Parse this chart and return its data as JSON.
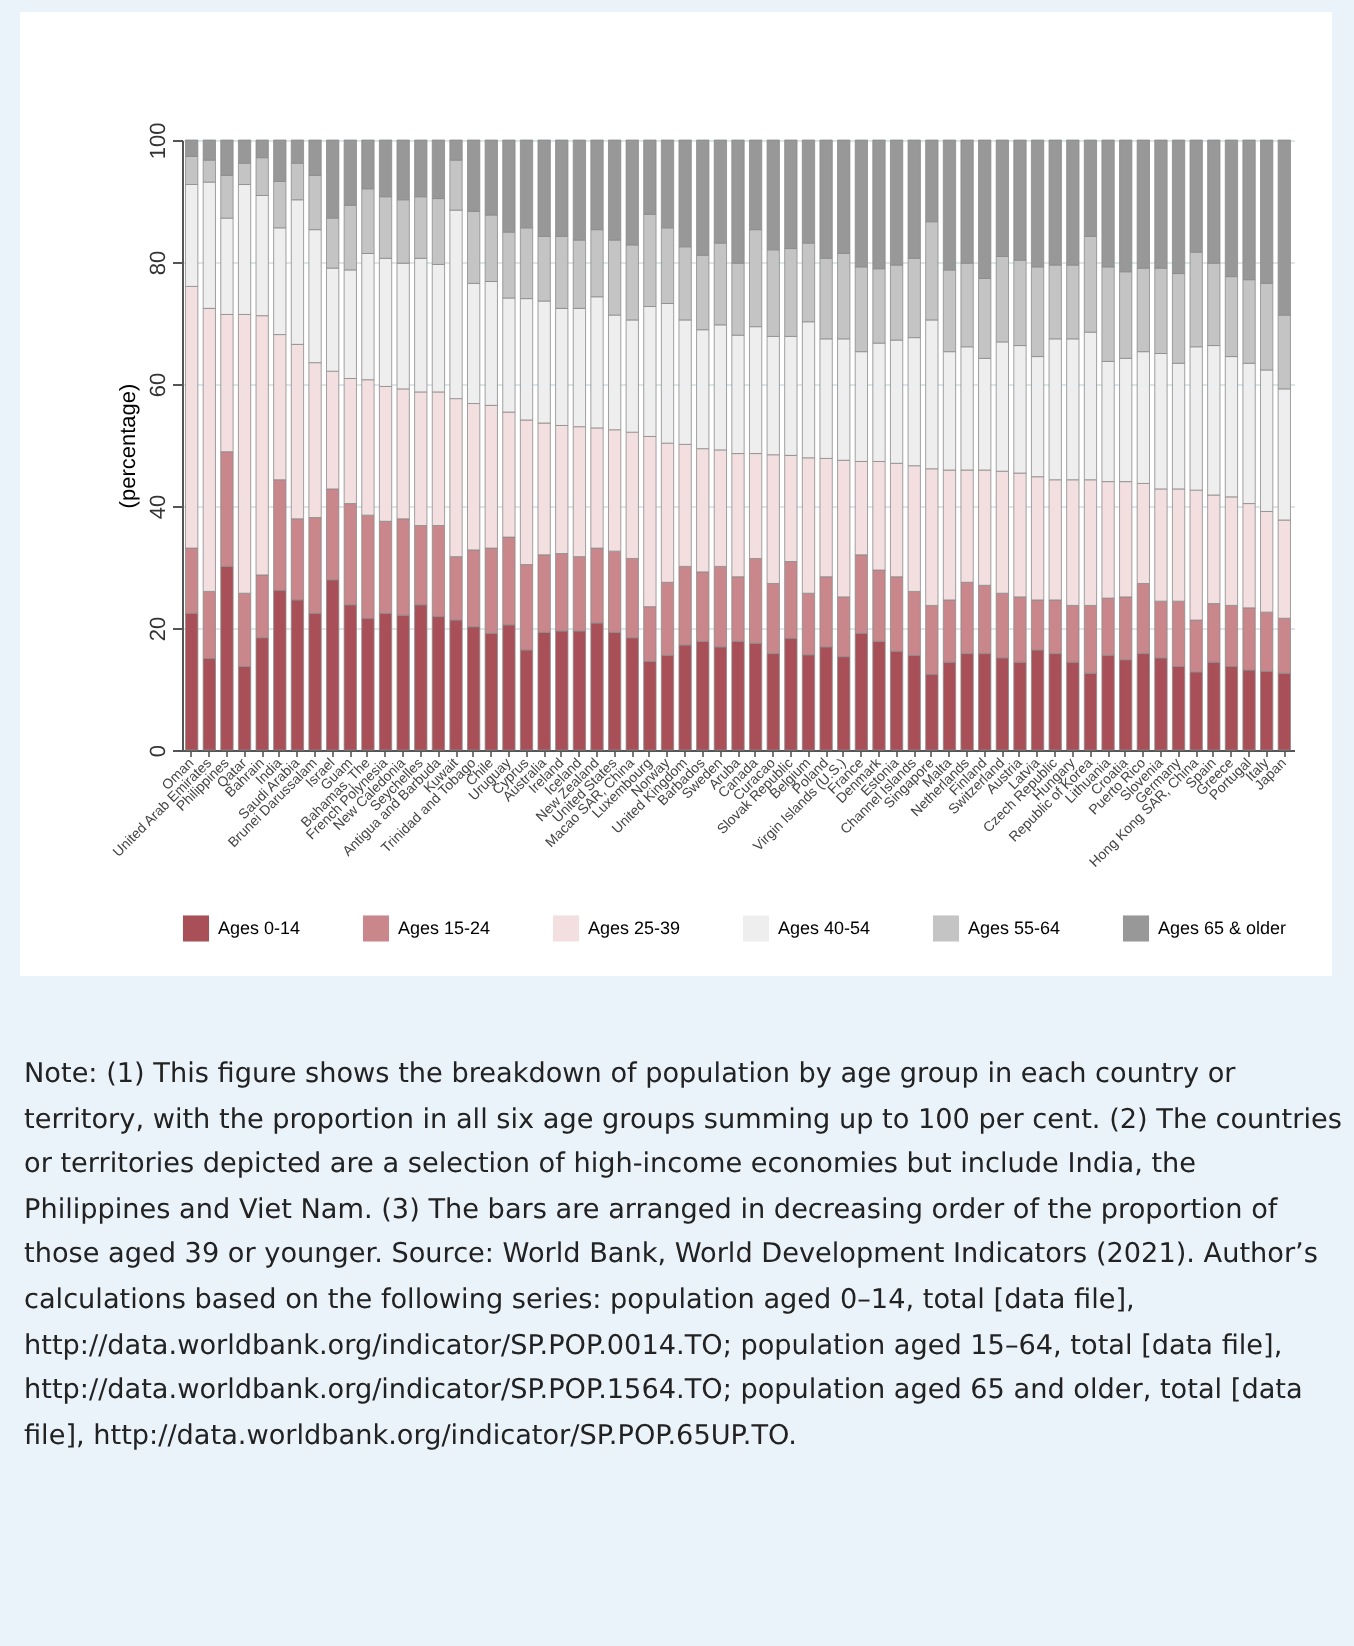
{
  "chart_data": {
    "type": "bar",
    "stacked": true,
    "ylabel": "(percentage)",
    "ylim": [
      0,
      100
    ],
    "yticks": [
      0,
      20,
      40,
      60,
      80,
      100
    ],
    "grid": "y",
    "legend": "bottom",
    "categories": [
      "Oman",
      "United Arab Emirates",
      "Philippines",
      "Qatar",
      "Bahrain",
      "India",
      "Saudi Arabia",
      "Brunei Darussalam",
      "Israel",
      "Guam",
      "Bahamas, The",
      "French Polynesia",
      "New Caledonia",
      "Seychelles",
      "Antigua and Barbuda",
      "Kuwait",
      "Trinidad and Tobago",
      "Chile",
      "Uruguay",
      "Cyprus",
      "Australia",
      "Ireland",
      "Iceland",
      "New Zealand",
      "United States",
      "Macao SAR, China",
      "Luxembourg",
      "Norway",
      "United Kingdom",
      "Barbados",
      "Sweden",
      "Aruba",
      "Canada",
      "Curacao",
      "Slovak Republic",
      "Belgium",
      "Poland",
      "Virgin Islands (U.S.)",
      "France",
      "Denmark",
      "Estonia",
      "Channel Islands",
      "Singapore",
      "Malta",
      "Netherlands",
      "Finland",
      "Switzerland",
      "Austria",
      "Latvia",
      "Czech Republic",
      "Hungary",
      "Republic of Korea",
      "Lithuania",
      "Croatia",
      "Puerto Rico",
      "Slovenia",
      "Germany",
      "Hong Kong SAR, China",
      "Spain",
      "Greece",
      "Portugal",
      "Italy",
      "Japan"
    ],
    "series": [
      {
        "name": "Ages 0-14",
        "color": "#a94f57",
        "values": [
          22.4,
          15.0,
          30.1,
          13.7,
          18.4,
          26.2,
          24.6,
          22.4,
          27.9,
          23.8,
          21.6,
          22.4,
          22.1,
          23.8,
          21.9,
          21.3,
          20.2,
          19.1,
          20.5,
          16.4,
          19.3,
          19.5,
          19.5,
          20.8,
          19.3,
          18.4,
          14.5,
          15.5,
          17.2,
          17.8,
          16.9,
          17.8,
          17.5,
          15.8,
          18.3,
          15.6,
          16.9,
          15.3,
          19.1,
          17.8,
          16.2,
          15.5,
          12.4,
          14.4,
          15.8,
          15.8,
          15.1,
          14.4,
          16.4,
          15.8,
          14.4,
          12.6,
          15.5,
          14.8,
          15.8,
          15.1,
          13.7,
          12.8,
          14.4,
          13.7,
          13.1,
          12.9,
          12.6
        ]
      },
      {
        "name": "Ages 15-24",
        "color": "#c9878c",
        "values": [
          10.7,
          11.0,
          18.8,
          12.0,
          10.3,
          18.1,
          13.3,
          15.7,
          14.9,
          16.6,
          16.9,
          15.1,
          15.8,
          13.0,
          14.9,
          10.4,
          12.6,
          14.0,
          14.4,
          14.0,
          12.7,
          12.7,
          12.2,
          12.3,
          13.3,
          13.0,
          9.0,
          12.0,
          12.9,
          11.4,
          13.2,
          10.6,
          13.9,
          11.5,
          12.6,
          10.1,
          11.5,
          9.8,
          12.9,
          11.7,
          12.2,
          10.5,
          11.3,
          10.2,
          11.7,
          11.2,
          10.6,
          10.7,
          8.2,
          8.8,
          9.3,
          11.1,
          9.4,
          10.3,
          11.5,
          9.3,
          10.7,
          8.5,
          9.6,
          10.0,
          10.2,
          9.7,
          9.0
        ]
      },
      {
        "name": "Ages 25-39",
        "color": "#f3dfe0",
        "values": [
          42.9,
          46.4,
          22.5,
          45.7,
          42.5,
          23.8,
          28.6,
          25.4,
          19.3,
          20.5,
          22.2,
          22.1,
          21.3,
          21.9,
          21.9,
          25.9,
          24.0,
          23.4,
          20.5,
          23.7,
          21.6,
          21.0,
          21.3,
          19.7,
          19.9,
          20.7,
          27.9,
          22.8,
          20.0,
          20.2,
          19.1,
          20.2,
          17.2,
          21.1,
          17.4,
          22.2,
          19.4,
          22.4,
          15.3,
          17.8,
          18.6,
          20.6,
          22.4,
          21.3,
          18.4,
          18.9,
          20.0,
          20.3,
          20.2,
          19.7,
          20.6,
          20.6,
          19.1,
          18.9,
          16.4,
          18.4,
          18.4,
          21.3,
          17.8,
          17.8,
          17.1,
          16.5,
          16.1
        ]
      },
      {
        "name": "Ages 40-54",
        "color": "#eeeeee",
        "values": [
          16.7,
          20.7,
          15.8,
          21.3,
          19.7,
          17.5,
          23.7,
          21.8,
          16.9,
          17.8,
          20.7,
          21.0,
          20.6,
          21.9,
          20.9,
          30.9,
          19.7,
          20.3,
          18.7,
          19.9,
          20.0,
          19.2,
          19.4,
          21.5,
          18.8,
          18.4,
          21.3,
          22.9,
          20.4,
          19.5,
          20.5,
          19.4,
          20.8,
          19.4,
          19.5,
          22.3,
          19.6,
          19.9,
          18.0,
          19.4,
          20.2,
          21.0,
          24.4,
          19.4,
          20.2,
          18.3,
          21.2,
          20.9,
          19.7,
          23.1,
          23.1,
          24.2,
          19.7,
          20.2,
          21.6,
          22.2,
          20.6,
          23.5,
          24.5,
          23.0,
          23.0,
          23.2,
          21.5
        ]
      },
      {
        "name": "Ages 55-64",
        "color": "#c4c4c4",
        "values": [
          4.6,
          3.6,
          7.0,
          3.5,
          6.2,
          7.6,
          6.0,
          8.9,
          8.2,
          10.6,
          10.6,
          10.1,
          10.4,
          10.1,
          10.8,
          8.2,
          11.8,
          10.9,
          10.8,
          11.6,
          10.6,
          11.8,
          11.2,
          11.0,
          12.3,
          12.3,
          15.1,
          12.4,
          12.0,
          12.2,
          13.4,
          11.8,
          15.9,
          14.2,
          14.4,
          12.9,
          13.2,
          14.0,
          13.9,
          12.2,
          12.3,
          13.0,
          16.1,
          13.4,
          13.7,
          13.1,
          14.0,
          14.0,
          14.7,
          12.1,
          12.1,
          15.7,
          15.5,
          14.2,
          13.7,
          14.0,
          14.7,
          15.5,
          13.5,
          13.1,
          13.7,
          14.2,
          12.1
        ]
      },
      {
        "name": "Ages 65 & older",
        "color": "#989898",
        "values": [
          2.7,
          3.3,
          5.8,
          3.8,
          2.9,
          6.8,
          3.8,
          5.8,
          12.8,
          10.7,
          8.0,
          9.3,
          9.8,
          9.3,
          9.6,
          3.3,
          11.7,
          12.3,
          15.1,
          14.4,
          15.8,
          15.8,
          16.4,
          14.7,
          16.4,
          17.2,
          12.2,
          14.4,
          17.5,
          18.9,
          16.9,
          20.2,
          14.7,
          18.0,
          17.8,
          16.9,
          19.4,
          18.6,
          20.8,
          21.1,
          20.5,
          19.4,
          13.4,
          21.3,
          20.2,
          22.7,
          19.1,
          19.7,
          20.8,
          20.5,
          20.5,
          15.8,
          20.8,
          21.6,
          21.0,
          21.0,
          21.9,
          18.4,
          20.2,
          22.4,
          22.9,
          23.5,
          28.7
        ]
      }
    ],
    "annotations": [
      "Note: (1) This figure shows the breakdown of population by age group in each country or territory, with the proportion in all six age groups summing up to 100 per cent. (2) The countries or territories depicted are a selection of high-income economies but include India, the Philippines and Viet Nam. (3) The bars are arranged in decreasing order of the proportion of those aged 39 or younger. Source: World Bank, World Development Indicators (2021). Author’s calculations based on the following series: population aged 0–14, total [data file], http://data.worldbank.org/indicator/SP.POP.0014.TO; population aged 15–64, total [data file], http://data.worldbank.org/indicator/SP.POP.1564.TO; population aged 65 and older, total [data file], http://data.worldbank.org/indicator/SP.POP.65UP.TO."
    ]
  }
}
